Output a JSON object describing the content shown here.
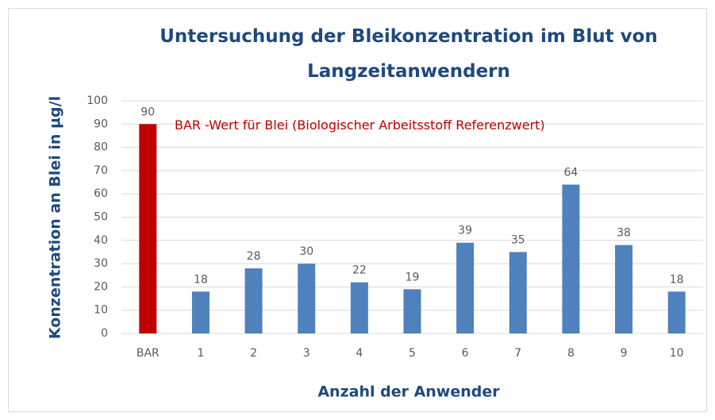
{
  "chart_data": {
    "type": "bar",
    "title": "Untersuchung der Bleikonzentration im Blut von Langzeitanwendern",
    "xlabel": "Anzahl der Anwender",
    "ylabel": "Konzentration an Blei in µg/l",
    "categories": [
      "BAR",
      "1",
      "2",
      "3",
      "4",
      "5",
      "6",
      "7",
      "8",
      "9",
      "10"
    ],
    "values": [
      90,
      18,
      28,
      30,
      22,
      19,
      39,
      35,
      64,
      38,
      18
    ],
    "colors": [
      "#c00000",
      "#4f81bd",
      "#4f81bd",
      "#4f81bd",
      "#4f81bd",
      "#4f81bd",
      "#4f81bd",
      "#4f81bd",
      "#4f81bd",
      "#4f81bd",
      "#4f81bd"
    ],
    "annotations": [
      {
        "text": "BAR -Wert für Blei (Biologischer Arbeitsstoff Referenzwert)",
        "color": "#c00000"
      }
    ],
    "ylim": [
      0,
      100
    ],
    "yticks": [
      0,
      10,
      20,
      30,
      40,
      50,
      60,
      70,
      80,
      90,
      100
    ],
    "grid": true
  }
}
